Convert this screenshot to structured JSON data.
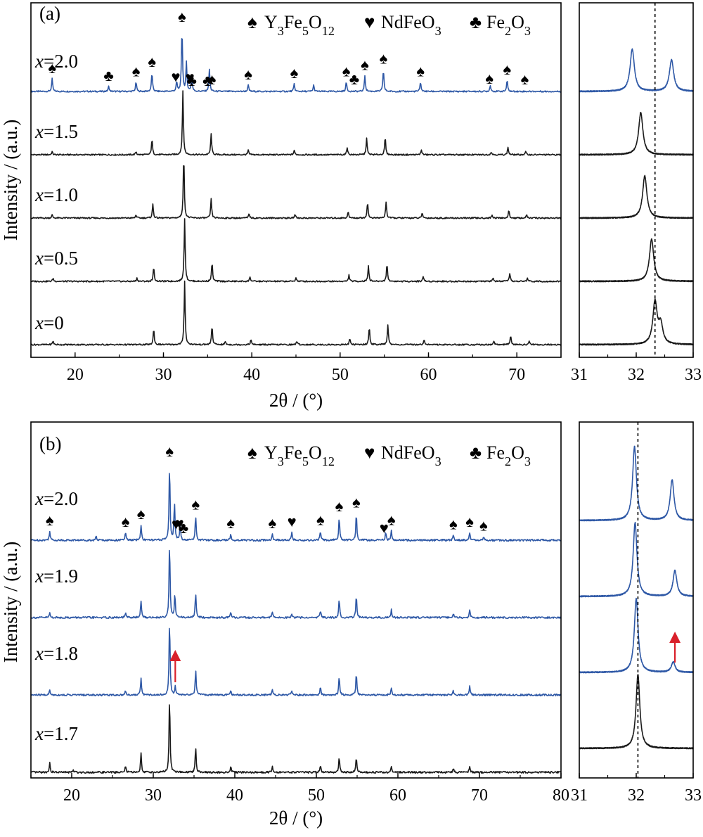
{
  "colors": {
    "black_trace": "#1a1a1a",
    "blue_trace": "#2e58a6",
    "neardfeo3_marker": "#d9202a",
    "marker": "#000000"
  },
  "legend": [
    {
      "symbol": "spade",
      "glyph": "♠",
      "label": "Y3Fe5O12",
      "parts": [
        [
          "Y",
          ""
        ],
        [
          "3",
          "sub"
        ],
        [
          "Fe",
          ""
        ],
        [
          "5",
          "sub"
        ],
        [
          "O",
          ""
        ],
        [
          "12",
          "sub"
        ]
      ]
    },
    {
      "symbol": "heart",
      "glyph": "♥",
      "label": "NdFeO3",
      "parts": [
        [
          "NdFeO",
          ""
        ],
        [
          "3",
          "sub"
        ]
      ]
    },
    {
      "symbol": "club",
      "glyph": "♣",
      "label": "Fe2O3",
      "parts": [
        [
          "Fe",
          ""
        ],
        [
          "2",
          "sub"
        ],
        [
          "O",
          ""
        ],
        [
          "3",
          "sub"
        ]
      ]
    }
  ],
  "chart_data": [
    {
      "type": "line",
      "panel": "(a)",
      "xlabel": "2θ / (°)",
      "ylabel": "Intensity / (a.u.)",
      "xlim": [
        15,
        75
      ],
      "xticks": [
        "20",
        "30",
        "40",
        "50",
        "60",
        "70"
      ],
      "xtick_values": [
        20,
        30,
        40,
        50,
        60,
        70
      ],
      "series": [
        {
          "label": "x=2.0",
          "color": "blue",
          "peaks": [
            [
              17.4,
              0.2
            ],
            [
              23.8,
              0.08
            ],
            [
              26.9,
              0.15
            ],
            [
              28.7,
              0.3
            ],
            [
              31.5,
              0.15
            ],
            [
              32.1,
              1.0
            ],
            [
              32.6,
              0.45
            ],
            [
              33.2,
              0.25
            ],
            [
              35.2,
              0.35
            ],
            [
              39.6,
              0.1
            ],
            [
              44.8,
              0.12
            ],
            [
              47.0,
              0.1
            ],
            [
              50.7,
              0.15
            ],
            [
              52.8,
              0.25
            ],
            [
              54.9,
              0.35
            ],
            [
              59.1,
              0.15
            ],
            [
              67.0,
              0.1
            ],
            [
              68.9,
              0.18
            ]
          ]
        },
        {
          "label": "x=1.5",
          "color": "black",
          "peaks": [
            [
              17.4,
              0.05
            ],
            [
              26.9,
              0.05
            ],
            [
              28.7,
              0.25
            ],
            [
              32.2,
              1.0
            ],
            [
              35.4,
              0.33
            ],
            [
              39.6,
              0.07
            ],
            [
              44.8,
              0.07
            ],
            [
              50.8,
              0.12
            ],
            [
              53.0,
              0.26
            ],
            [
              55.1,
              0.28
            ],
            [
              59.2,
              0.08
            ],
            [
              67.1,
              0.05
            ],
            [
              69.0,
              0.12
            ],
            [
              71.0,
              0.05
            ]
          ]
        },
        {
          "label": "x=1.0",
          "color": "black",
          "peaks": [
            [
              17.4,
              0.05
            ],
            [
              26.9,
              0.05
            ],
            [
              28.8,
              0.22
            ],
            [
              32.3,
              1.0
            ],
            [
              35.4,
              0.3
            ],
            [
              39.7,
              0.07
            ],
            [
              44.9,
              0.06
            ],
            [
              50.9,
              0.1
            ],
            [
              53.1,
              0.25
            ],
            [
              55.2,
              0.26
            ],
            [
              59.3,
              0.08
            ],
            [
              67.2,
              0.05
            ],
            [
              69.1,
              0.12
            ],
            [
              71.1,
              0.05
            ]
          ]
        },
        {
          "label": "x=0.5",
          "color": "black",
          "peaks": [
            [
              17.5,
              0.05
            ],
            [
              27.0,
              0.05
            ],
            [
              28.9,
              0.22
            ],
            [
              32.4,
              1.0
            ],
            [
              35.5,
              0.3
            ],
            [
              39.8,
              0.07
            ],
            [
              45.0,
              0.06
            ],
            [
              51.0,
              0.1
            ],
            [
              53.2,
              0.25
            ],
            [
              55.3,
              0.28
            ],
            [
              59.4,
              0.08
            ],
            [
              67.3,
              0.05
            ],
            [
              69.2,
              0.12
            ],
            [
              71.2,
              0.05
            ]
          ]
        },
        {
          "label": "x=0",
          "color": "black",
          "peaks": [
            [
              17.5,
              0.06
            ],
            [
              28.9,
              0.25
            ],
            [
              32.4,
              1.0
            ],
            [
              35.5,
              0.3
            ],
            [
              37.0,
              0.05
            ],
            [
              39.9,
              0.08
            ],
            [
              45.1,
              0.06
            ],
            [
              51.1,
              0.1
            ],
            [
              53.3,
              0.28
            ],
            [
              55.4,
              0.32
            ],
            [
              59.5,
              0.09
            ],
            [
              67.4,
              0.06
            ],
            [
              69.3,
              0.14
            ],
            [
              71.4,
              0.06
            ]
          ]
        }
      ],
      "markers": [
        {
          "symbol": "spade",
          "x": 17.4
        },
        {
          "symbol": "club",
          "x": 23.8
        },
        {
          "symbol": "spade",
          "x": 26.9
        },
        {
          "symbol": "spade",
          "x": 28.7
        },
        {
          "symbol": "heart",
          "x": 31.4
        },
        {
          "symbol": "spade",
          "x": 32.1
        },
        {
          "symbol": "heart",
          "x": 33.0
        },
        {
          "symbol": "club",
          "x": 33.2
        },
        {
          "symbol": "club",
          "x": 35.0
        },
        {
          "symbol": "spade",
          "x": 35.5
        },
        {
          "symbol": "spade",
          "x": 39.6
        },
        {
          "symbol": "spade",
          "x": 44.8
        },
        {
          "symbol": "spade",
          "x": 50.7
        },
        {
          "symbol": "club",
          "x": 51.6
        },
        {
          "symbol": "spade",
          "x": 52.8
        },
        {
          "symbol": "spade",
          "x": 54.9
        },
        {
          "symbol": "spade",
          "x": 59.1
        },
        {
          "symbol": "spade",
          "x": 66.9
        },
        {
          "symbol": "spade",
          "x": 68.9
        },
        {
          "symbol": "spade",
          "x": 70.9
        }
      ]
    },
    {
      "type": "line",
      "panel": "(a) inset",
      "xlim": [
        31,
        33
      ],
      "xticks": [
        "31",
        "32",
        "33"
      ],
      "xtick_values": [
        31,
        32,
        33
      ],
      "reference_line": 32.33,
      "series": [
        {
          "label": "x=2.0",
          "color": "blue",
          "peaks": [
            [
              31.93,
              1.0
            ],
            [
              32.62,
              0.75
            ]
          ]
        },
        {
          "label": "x=1.5",
          "color": "black",
          "peaks": [
            [
              32.08,
              1.0
            ]
          ]
        },
        {
          "label": "x=1.0",
          "color": "black",
          "peaks": [
            [
              32.15,
              1.0
            ]
          ]
        },
        {
          "label": "x=0.5",
          "color": "black",
          "peaks": [
            [
              32.27,
              1.0
            ]
          ]
        },
        {
          "label": "x=0",
          "color": "black",
          "peaks": [
            [
              32.33,
              1.0
            ],
            [
              32.43,
              0.45
            ]
          ]
        }
      ]
    },
    {
      "type": "line",
      "panel": "(b)",
      "xlabel": "2θ / (°)",
      "ylabel": "Intensity / (a.u.)",
      "xlim": [
        15,
        80
      ],
      "xticks": [
        "20",
        "30",
        "40",
        "50",
        "60",
        "70",
        "80"
      ],
      "xtick_values": [
        20,
        30,
        40,
        50,
        60,
        70,
        80
      ],
      "series": [
        {
          "label": "x=2.0",
          "color": "blue",
          "peaks": [
            [
              17.3,
              0.12
            ],
            [
              23.0,
              0.05
            ],
            [
              26.6,
              0.1
            ],
            [
              28.5,
              0.2
            ],
            [
              32.0,
              1.0
            ],
            [
              32.6,
              0.5
            ],
            [
              33.3,
              0.2
            ],
            [
              35.2,
              0.32
            ],
            [
              39.5,
              0.08
            ],
            [
              44.6,
              0.08
            ],
            [
              47.0,
              0.1
            ],
            [
              50.5,
              0.12
            ],
            [
              52.8,
              0.3
            ],
            [
              54.9,
              0.35
            ],
            [
              58.5,
              0.1
            ],
            [
              59.2,
              0.12
            ],
            [
              66.8,
              0.07
            ],
            [
              68.8,
              0.1
            ],
            [
              70.5,
              0.05
            ]
          ]
        },
        {
          "label": "x=1.9",
          "color": "blue",
          "peaks": [
            [
              17.3,
              0.06
            ],
            [
              26.6,
              0.06
            ],
            [
              28.5,
              0.22
            ],
            [
              32.0,
              1.0
            ],
            [
              32.65,
              0.3
            ],
            [
              35.2,
              0.32
            ],
            [
              39.5,
              0.06
            ],
            [
              44.6,
              0.07
            ],
            [
              47.0,
              0.05
            ],
            [
              50.5,
              0.1
            ],
            [
              52.8,
              0.25
            ],
            [
              54.9,
              0.3
            ],
            [
              59.2,
              0.1
            ],
            [
              66.8,
              0.05
            ],
            [
              68.8,
              0.1
            ]
          ]
        },
        {
          "label": "x=1.8",
          "color": "blue",
          "peaks": [
            [
              17.3,
              0.06
            ],
            [
              26.6,
              0.06
            ],
            [
              28.5,
              0.22
            ],
            [
              32.0,
              1.0
            ],
            [
              32.7,
              0.12
            ],
            [
              35.2,
              0.33
            ],
            [
              39.5,
              0.06
            ],
            [
              44.6,
              0.08
            ],
            [
              47.0,
              0.05
            ],
            [
              50.5,
              0.1
            ],
            [
              52.8,
              0.25
            ],
            [
              54.9,
              0.28
            ],
            [
              59.2,
              0.1
            ],
            [
              66.8,
              0.05
            ],
            [
              68.8,
              0.12
            ]
          ]
        },
        {
          "label": "x=1.7",
          "color": "black",
          "peaks": [
            [
              17.3,
              0.12
            ],
            [
              20.2,
              0.03
            ],
            [
              26.6,
              0.08
            ],
            [
              28.5,
              0.25
            ],
            [
              32.0,
              1.0
            ],
            [
              35.2,
              0.33
            ],
            [
              39.5,
              0.08
            ],
            [
              44.6,
              0.07
            ],
            [
              50.5,
              0.1
            ],
            [
              52.8,
              0.2
            ],
            [
              54.9,
              0.2
            ],
            [
              59.2,
              0.07
            ],
            [
              66.8,
              0.05
            ],
            [
              68.8,
              0.08
            ]
          ]
        }
      ],
      "markers": [
        {
          "symbol": "spade",
          "x": 17.3
        },
        {
          "symbol": "spade",
          "x": 26.6
        },
        {
          "symbol": "spade",
          "x": 28.5
        },
        {
          "symbol": "spade",
          "x": 32.0
        },
        {
          "symbol": "heart",
          "x": 32.8
        },
        {
          "symbol": "heart",
          "x": 33.2
        },
        {
          "symbol": "club",
          "x": 33.7
        },
        {
          "symbol": "spade",
          "x": 35.2
        },
        {
          "symbol": "spade",
          "x": 39.5
        },
        {
          "symbol": "spade",
          "x": 44.6
        },
        {
          "symbol": "heart",
          "x": 47.0
        },
        {
          "symbol": "spade",
          "x": 50.5
        },
        {
          "symbol": "spade",
          "x": 52.8
        },
        {
          "symbol": "spade",
          "x": 54.9
        },
        {
          "symbol": "heart",
          "x": 58.3
        },
        {
          "symbol": "spade",
          "x": 59.2
        },
        {
          "symbol": "spade",
          "x": 66.8
        },
        {
          "symbol": "spade",
          "x": 68.8
        },
        {
          "symbol": "spade",
          "x": 70.5
        }
      ],
      "arrow_x": 32.7
    },
    {
      "type": "line",
      "panel": "(b) inset",
      "xlim": [
        31,
        33
      ],
      "xticks": [
        "31",
        "32",
        "33"
      ],
      "xtick_values": [
        31,
        32,
        33
      ],
      "reference_line": 32.03,
      "series": [
        {
          "label": "x=2.0",
          "color": "blue",
          "peaks": [
            [
              31.97,
              1.0
            ],
            [
              32.63,
              0.55
            ]
          ]
        },
        {
          "label": "x=1.9",
          "color": "blue",
          "peaks": [
            [
              31.98,
              1.0
            ],
            [
              32.68,
              0.35
            ]
          ]
        },
        {
          "label": "x=1.8",
          "color": "blue",
          "peaks": [
            [
              32.0,
              1.0
            ],
            [
              32.65,
              0.14
            ]
          ]
        },
        {
          "label": "x=1.7",
          "color": "black",
          "peaks": [
            [
              32.03,
              1.0
            ]
          ]
        }
      ],
      "arrow_x": 32.68
    }
  ]
}
